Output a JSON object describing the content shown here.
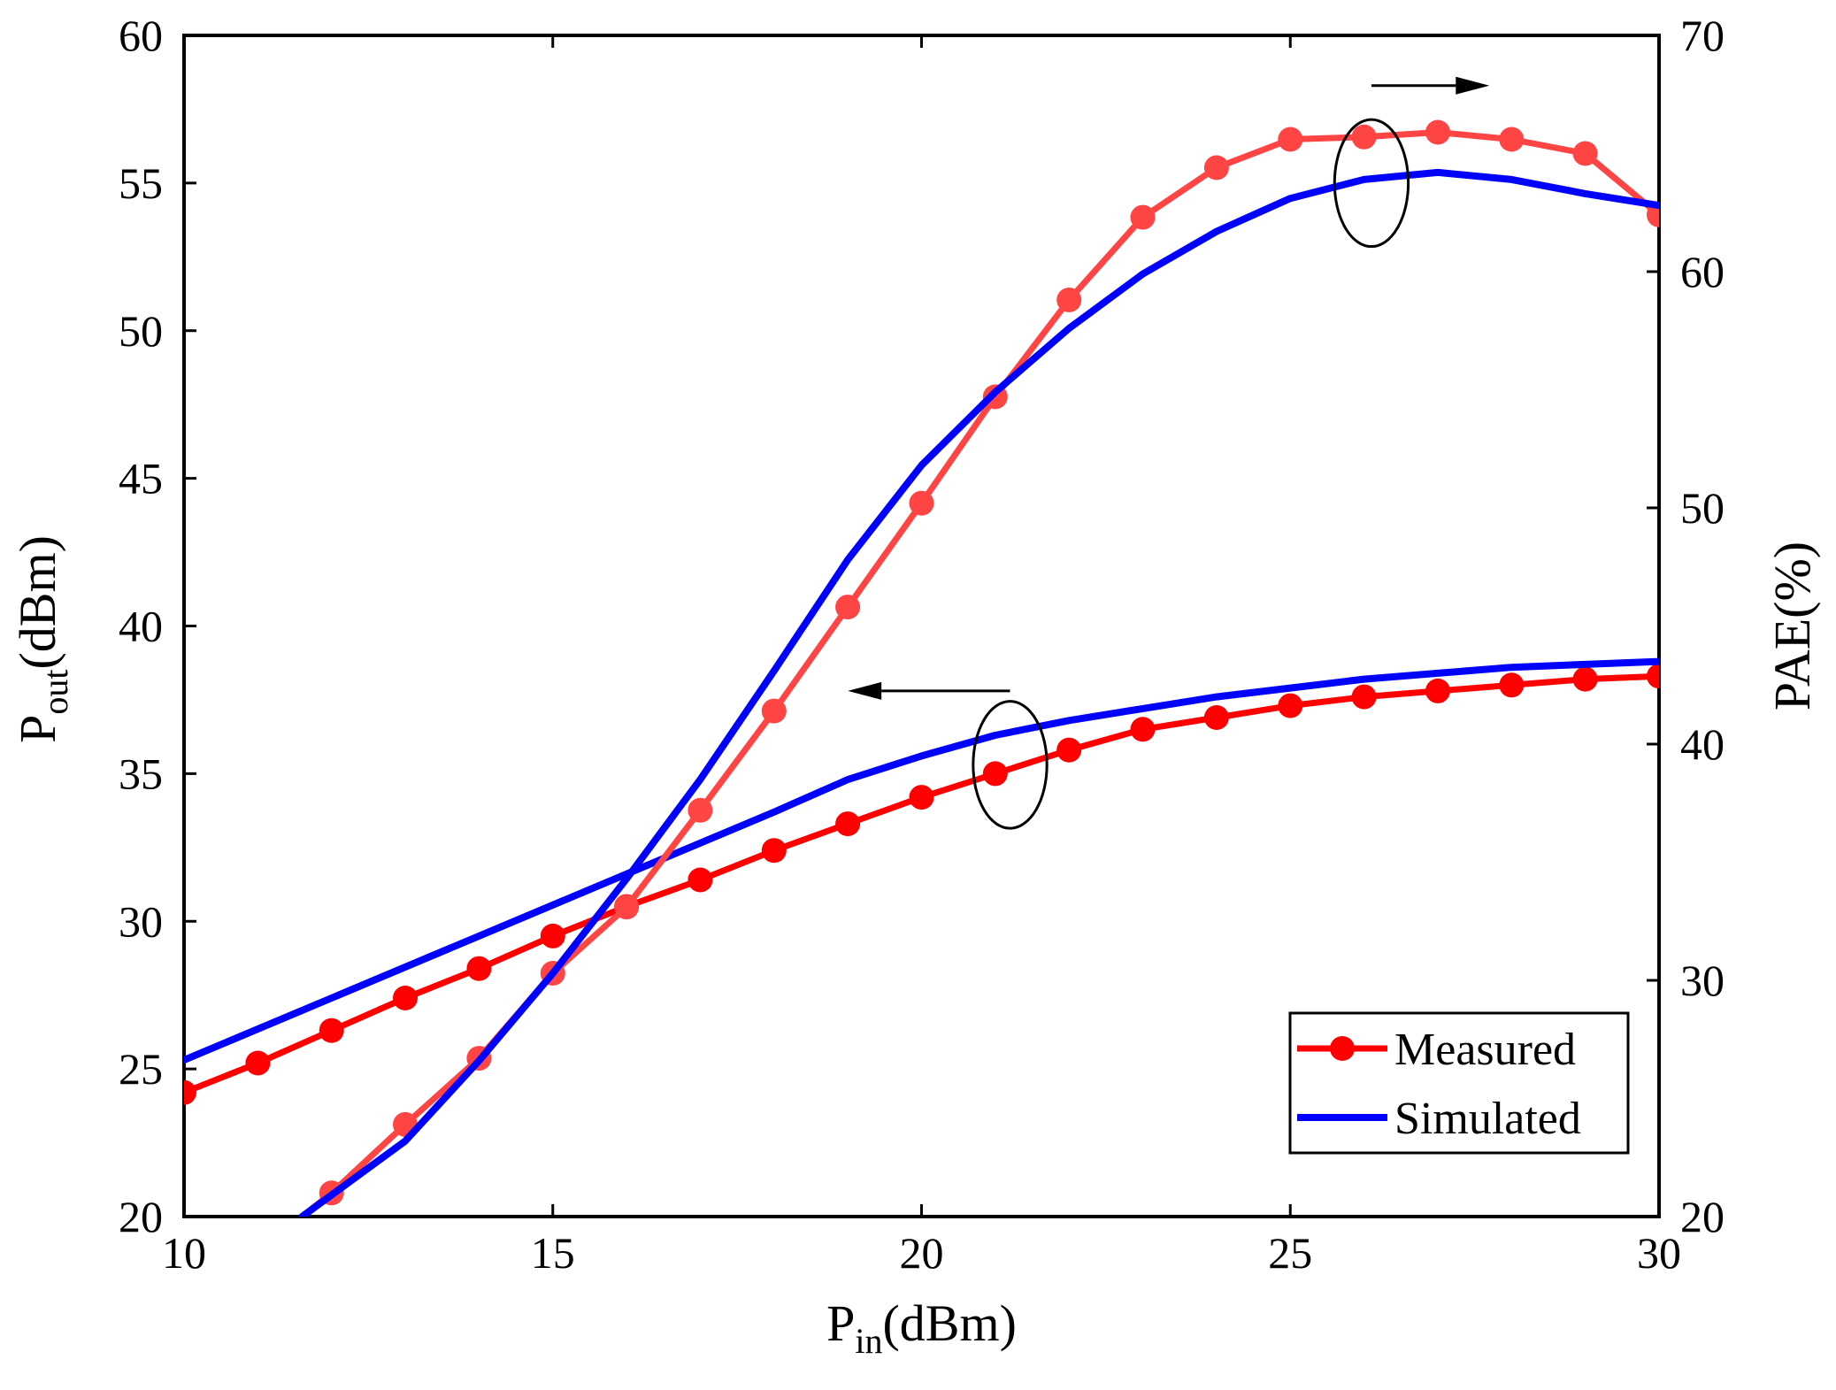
{
  "chart_data": {
    "type": "line",
    "title": "",
    "xlabel": {
      "main": "P",
      "sub": "in",
      "unit": "(dBm)"
    },
    "ylabel_left": {
      "main": "P",
      "sub": "out",
      "unit": "(dBm)"
    },
    "ylabel_right": "PAE(%)",
    "xlim": [
      10,
      30
    ],
    "ylim_left": [
      20,
      60
    ],
    "ylim_right": [
      20,
      70
    ],
    "x_ticks": [
      "10",
      "15",
      "20",
      "25",
      "30"
    ],
    "y_left_ticks": [
      "20",
      "25",
      "30",
      "35",
      "40",
      "45",
      "50",
      "55",
      "60"
    ],
    "y_right_ticks": [
      "20",
      "30",
      "40",
      "50",
      "60",
      "70"
    ],
    "legend": {
      "position": "bottom-right",
      "entries": [
        "Measured",
        "Simulated"
      ]
    },
    "colors": {
      "measured": "#ff0000",
      "measured_pae": "#ff4444",
      "simulated": "#0000ff",
      "axis": "#000000"
    },
    "series": [
      {
        "name": "Measured Pout",
        "axis": "left",
        "style": "measured",
        "x": [
          10,
          11,
          12,
          13,
          14,
          15,
          16,
          17,
          18,
          19,
          20,
          21,
          22,
          23,
          24,
          25,
          26,
          27,
          28,
          29,
          30
        ],
        "values": [
          24.2,
          25.2,
          26.3,
          27.4,
          28.4,
          29.5,
          30.5,
          31.4,
          32.4,
          33.3,
          34.2,
          35.0,
          35.8,
          36.5,
          36.9,
          37.3,
          37.6,
          37.8,
          38.0,
          38.2,
          38.3
        ]
      },
      {
        "name": "Simulated Pout",
        "axis": "left",
        "style": "simulated",
        "x": [
          10,
          12,
          14,
          16,
          18,
          19,
          20,
          21,
          22,
          23,
          24,
          25,
          26,
          27,
          28,
          29,
          30
        ],
        "values": [
          25.3,
          27.4,
          29.5,
          31.6,
          33.7,
          34.8,
          35.6,
          36.3,
          36.8,
          37.2,
          37.6,
          37.9,
          38.2,
          38.4,
          38.6,
          38.7,
          38.8
        ]
      },
      {
        "name": "Measured PAE",
        "axis": "right",
        "style": "measured",
        "x": [
          11.6,
          12,
          13,
          14,
          15,
          16,
          17,
          18,
          19,
          20,
          21,
          22,
          23,
          24,
          25,
          26,
          27,
          28,
          29,
          30
        ],
        "values": [
          20.0,
          21.0,
          23.9,
          26.7,
          30.3,
          33.1,
          37.2,
          41.4,
          45.8,
          50.2,
          54.7,
          58.8,
          62.3,
          64.4,
          65.6,
          65.7,
          65.9,
          65.6,
          65.0,
          62.4
        ]
      },
      {
        "name": "Simulated PAE",
        "axis": "right",
        "style": "simulated",
        "x": [
          11.6,
          13,
          14,
          15,
          16,
          17,
          18,
          19,
          20,
          21,
          22,
          23,
          24,
          25,
          26,
          27,
          28,
          29,
          30
        ],
        "values": [
          20.0,
          23.2,
          26.6,
          30.3,
          34.3,
          38.5,
          43.1,
          47.8,
          51.8,
          54.9,
          57.6,
          59.9,
          61.7,
          63.1,
          63.9,
          64.2,
          63.9,
          63.3,
          62.8
        ]
      }
    ],
    "annotations": [
      {
        "type": "ellipse-arrow",
        "ellipse_center": [
          21.2,
          35.3
        ],
        "ellipse_axis": "left",
        "ellipse_width": 1.0,
        "ellipse_height": 4.3,
        "arrow": "left",
        "arrow_y": 37.8,
        "arrow_from": 21.2,
        "arrow_to": 19.0
      },
      {
        "type": "ellipse-arrow",
        "ellipse_center": [
          26.1,
          55.0
        ],
        "ellipse_axis": "left",
        "ellipse_width": 1.0,
        "ellipse_height": 4.3,
        "arrow": "right",
        "arrow_y": 58.3,
        "arrow_from": 26.1,
        "arrow_to": 27.7
      }
    ]
  }
}
